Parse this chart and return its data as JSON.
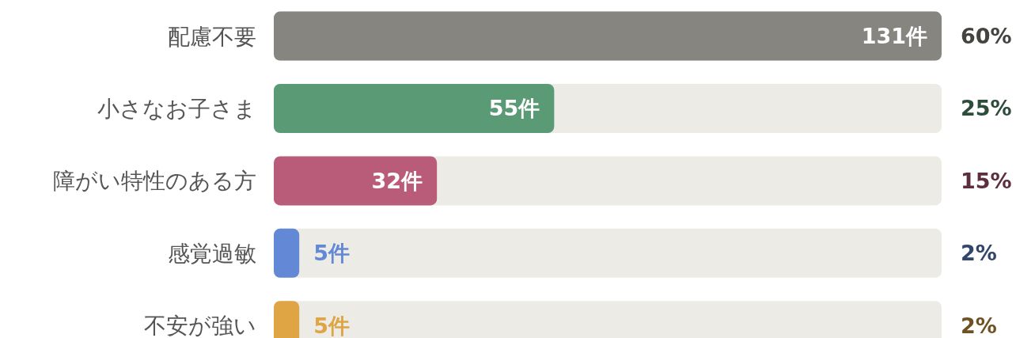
{
  "chart_data": {
    "type": "bar",
    "orientation": "horizontal",
    "tick_labels": "y",
    "categories": [
      "配慮不要",
      "小さなお子さま",
      "障がい特性のある方",
      "感覚過敏",
      "不安が強い"
    ],
    "values": [
      131,
      55,
      32,
      5,
      5
    ],
    "colors": [
      "#878580",
      "#5a9a75",
      "#b95c7a",
      "#6389d6",
      "#dfa443"
    ],
    "value_labels": [
      "131件",
      "55件",
      "32件",
      "5件",
      "5件"
    ],
    "xlim": [
      0,
      131
    ],
    "annotations": [
      "60%",
      "25%",
      "15%",
      "2%",
      "2%"
    ]
  }
}
